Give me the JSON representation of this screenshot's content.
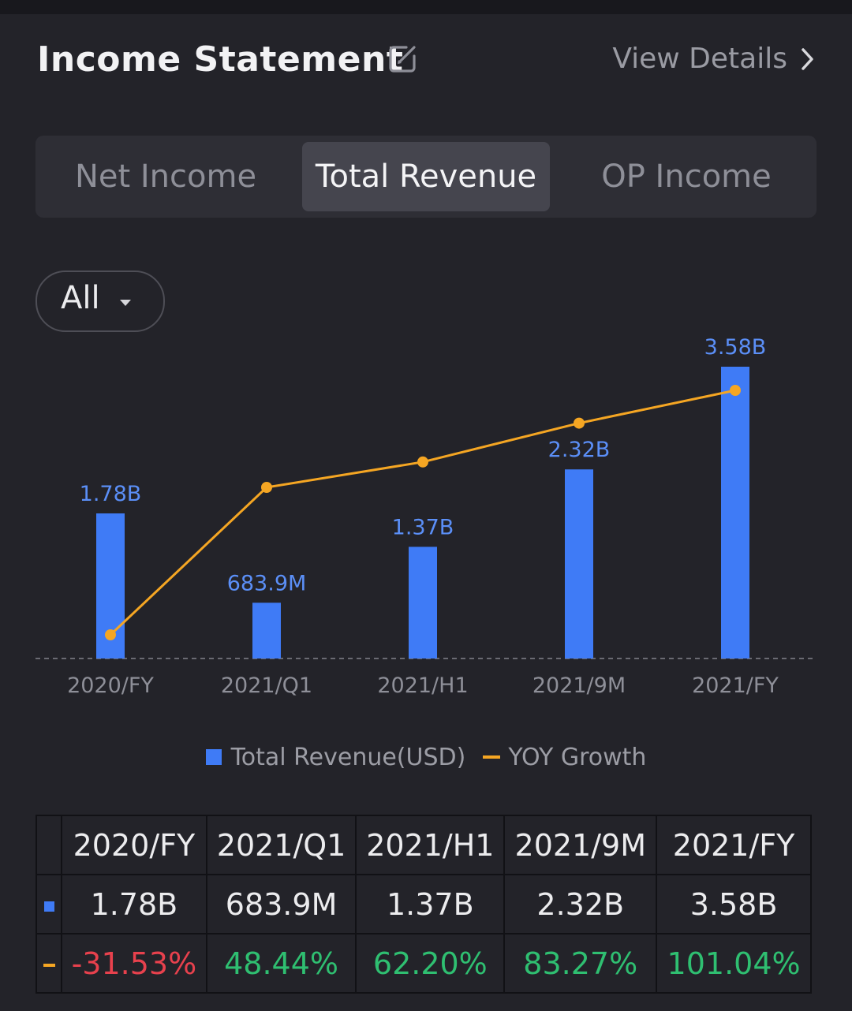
{
  "header": {
    "title": "Income Statement",
    "view_details": "View Details"
  },
  "tabs": [
    {
      "label": "Net Income",
      "active": false
    },
    {
      "label": "Total Revenue",
      "active": true
    },
    {
      "label": "OP Income",
      "active": false
    }
  ],
  "filter": {
    "selected": "All"
  },
  "chart_data": {
    "type": "bar",
    "categories": [
      "2020/FY",
      "2021/Q1",
      "2021/H1",
      "2021/9M",
      "2021/FY"
    ],
    "series": [
      {
        "name": "Total Revenue(USD)",
        "type": "bar",
        "values": [
          1.78,
          0.6839,
          1.37,
          2.32,
          3.58
        ],
        "unit": "B",
        "labels": [
          "1.78B",
          "683.9M",
          "1.37B",
          "2.32B",
          "3.58B"
        ],
        "color": "#3f7bf6"
      },
      {
        "name": "YOY Growth",
        "type": "line",
        "values": [
          -31.53,
          48.44,
          62.2,
          83.27,
          101.04
        ],
        "unit": "%",
        "color": "#f5a623"
      }
    ],
    "legend_position": "bottom-center",
    "grid": false
  },
  "table": {
    "headers": [
      "2020/FY",
      "2021/Q1",
      "2021/H1",
      "2021/9M",
      "2021/FY"
    ],
    "revenue": [
      "1.78B",
      "683.9M",
      "1.37B",
      "2.32B",
      "3.58B"
    ],
    "growth": [
      "-31.53%",
      "48.44%",
      "62.20%",
      "83.27%",
      "101.04%"
    ]
  },
  "colors": {
    "background": "#232329",
    "bar": "#3f7bf6",
    "line": "#f5a623",
    "positive": "#2fbf71",
    "negative": "#e8414d"
  }
}
